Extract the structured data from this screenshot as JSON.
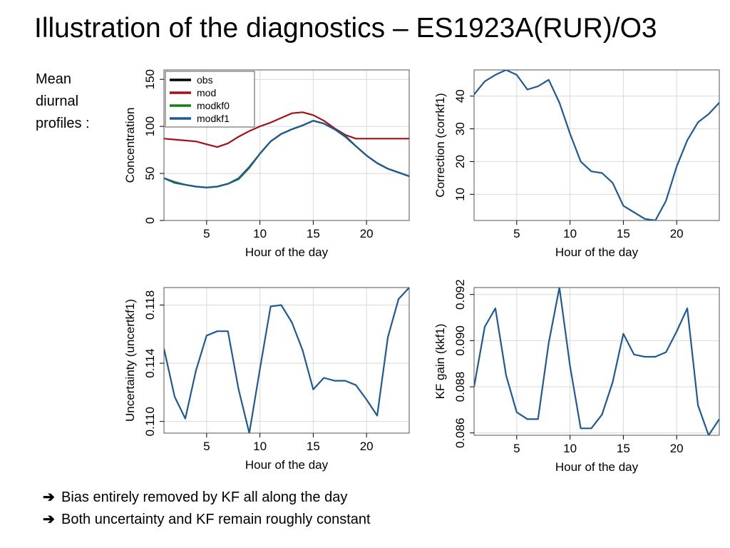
{
  "slide": {
    "title": "Illustration of the diagnostics – ES1923A(RUR)/O3",
    "side_label": [
      "Mean",
      "diurnal",
      "profiles :"
    ],
    "bullets": [
      "Bias entirely removed by KF all along the day",
      "Both uncertainty and KF remain roughly constant"
    ],
    "arrow_icon": "right-arrow-icon"
  },
  "chart_data": [
    {
      "type": "line",
      "xlabel": "Hour of the day",
      "ylabel": "Concentration",
      "xlim": [
        1,
        24
      ],
      "ylim": [
        0,
        160
      ],
      "xticks": [
        5,
        10,
        15,
        20
      ],
      "yticks": [
        0,
        50,
        100,
        150
      ],
      "grid": true,
      "legend": "top-left",
      "x": [
        1,
        2,
        3,
        4,
        5,
        6,
        7,
        8,
        9,
        10,
        11,
        12,
        13,
        14,
        15,
        16,
        17,
        18,
        19,
        20,
        21,
        22,
        23,
        24
      ],
      "series": [
        {
          "name": "obs",
          "color": "#000000",
          "values": [
            45,
            40,
            38,
            36,
            35,
            36,
            39,
            44,
            56,
            71,
            84,
            92,
            97,
            101,
            106,
            103,
            97,
            89,
            79,
            69,
            61,
            55,
            51,
            47
          ]
        },
        {
          "name": "mod",
          "color": "#a50f15",
          "values": [
            87,
            86,
            85,
            84,
            81,
            78,
            82,
            89,
            95,
            100,
            104,
            109,
            114,
            115,
            112,
            106,
            98,
            91,
            87,
            87,
            87,
            87,
            87,
            87
          ]
        },
        {
          "name": "modkf0",
          "color": "#1a7a1a",
          "values": [
            45,
            40,
            38,
            36,
            35,
            36,
            39,
            44,
            56,
            71,
            84,
            92,
            97,
            101,
            106,
            103,
            97,
            89,
            79,
            69,
            61,
            55,
            51,
            47
          ]
        },
        {
          "name": "modkf1",
          "color": "#1f5a96",
          "values": [
            45,
            41,
            38,
            36,
            35,
            36,
            39,
            45,
            57,
            71,
            84,
            92,
            97,
            101,
            106,
            103,
            97,
            90,
            79,
            69,
            61,
            55,
            51,
            47
          ]
        }
      ]
    },
    {
      "type": "line",
      "xlabel": "Hour of the day",
      "ylabel": "Correction (corrkf1)",
      "xlim": [
        1,
        24
      ],
      "ylim": [
        2,
        48
      ],
      "xticks": [
        5,
        10,
        15,
        20
      ],
      "yticks": [
        10,
        20,
        30,
        40
      ],
      "grid": true,
      "x": [
        1,
        2,
        3,
        4,
        5,
        6,
        7,
        8,
        9,
        10,
        11,
        12,
        13,
        14,
        15,
        16,
        17,
        18,
        19,
        20,
        21,
        22,
        23,
        24
      ],
      "series": [
        {
          "color": "#1f5a96",
          "values": [
            40.5,
            44.5,
            46.5,
            48,
            46.5,
            42,
            43,
            45,
            38,
            28.5,
            20,
            17,
            16.5,
            13.5,
            6.5,
            4.5,
            2.5,
            2,
            8,
            18.5,
            26.5,
            32,
            34.5,
            38
          ]
        }
      ]
    },
    {
      "type": "line",
      "xlabel": "Hour of the day",
      "ylabel": "Uncertainty (uncertkf1)",
      "xlim": [
        1,
        24
      ],
      "ylim": [
        0.1092,
        0.1192
      ],
      "xticks": [
        5,
        10,
        15,
        20
      ],
      "yticks": [
        0.11,
        0.114,
        0.118
      ],
      "grid": true,
      "x": [
        1,
        2,
        3,
        4,
        5,
        6,
        7,
        8,
        9,
        10,
        11,
        12,
        13,
        14,
        15,
        16,
        17,
        18,
        19,
        20,
        21,
        22,
        23,
        24
      ],
      "series": [
        {
          "color": "#1f5a96",
          "values": [
            0.115,
            0.1117,
            0.1102,
            0.1135,
            0.1159,
            0.1162,
            0.1162,
            0.1122,
            0.1092,
            0.1136,
            0.1179,
            0.118,
            0.1168,
            0.1149,
            0.1122,
            0.113,
            0.1128,
            0.1128,
            0.1125,
            0.1115,
            0.1104,
            0.1158,
            0.1184,
            0.1192
          ]
        }
      ]
    },
    {
      "type": "line",
      "xlabel": "Hour of the day",
      "ylabel": "KF gain (kkf1)",
      "xlim": [
        1,
        24
      ],
      "ylim": [
        0.0859,
        0.0923
      ],
      "xticks": [
        5,
        10,
        15,
        20
      ],
      "yticks": [
        0.086,
        0.088,
        0.09,
        0.092
      ],
      "grid": true,
      "x": [
        1,
        2,
        3,
        4,
        5,
        6,
        7,
        8,
        9,
        10,
        11,
        12,
        13,
        14,
        15,
        16,
        17,
        18,
        19,
        20,
        21,
        22,
        23,
        24
      ],
      "series": [
        {
          "color": "#1f5a96",
          "values": [
            0.088,
            0.0906,
            0.0914,
            0.0885,
            0.0869,
            0.0866,
            0.0866,
            0.0899,
            0.0923,
            0.0889,
            0.0862,
            0.0862,
            0.0868,
            0.0882,
            0.0903,
            0.0894,
            0.0893,
            0.0893,
            0.0895,
            0.0904,
            0.0914,
            0.0872,
            0.0859,
            0.0866
          ]
        }
      ]
    }
  ]
}
